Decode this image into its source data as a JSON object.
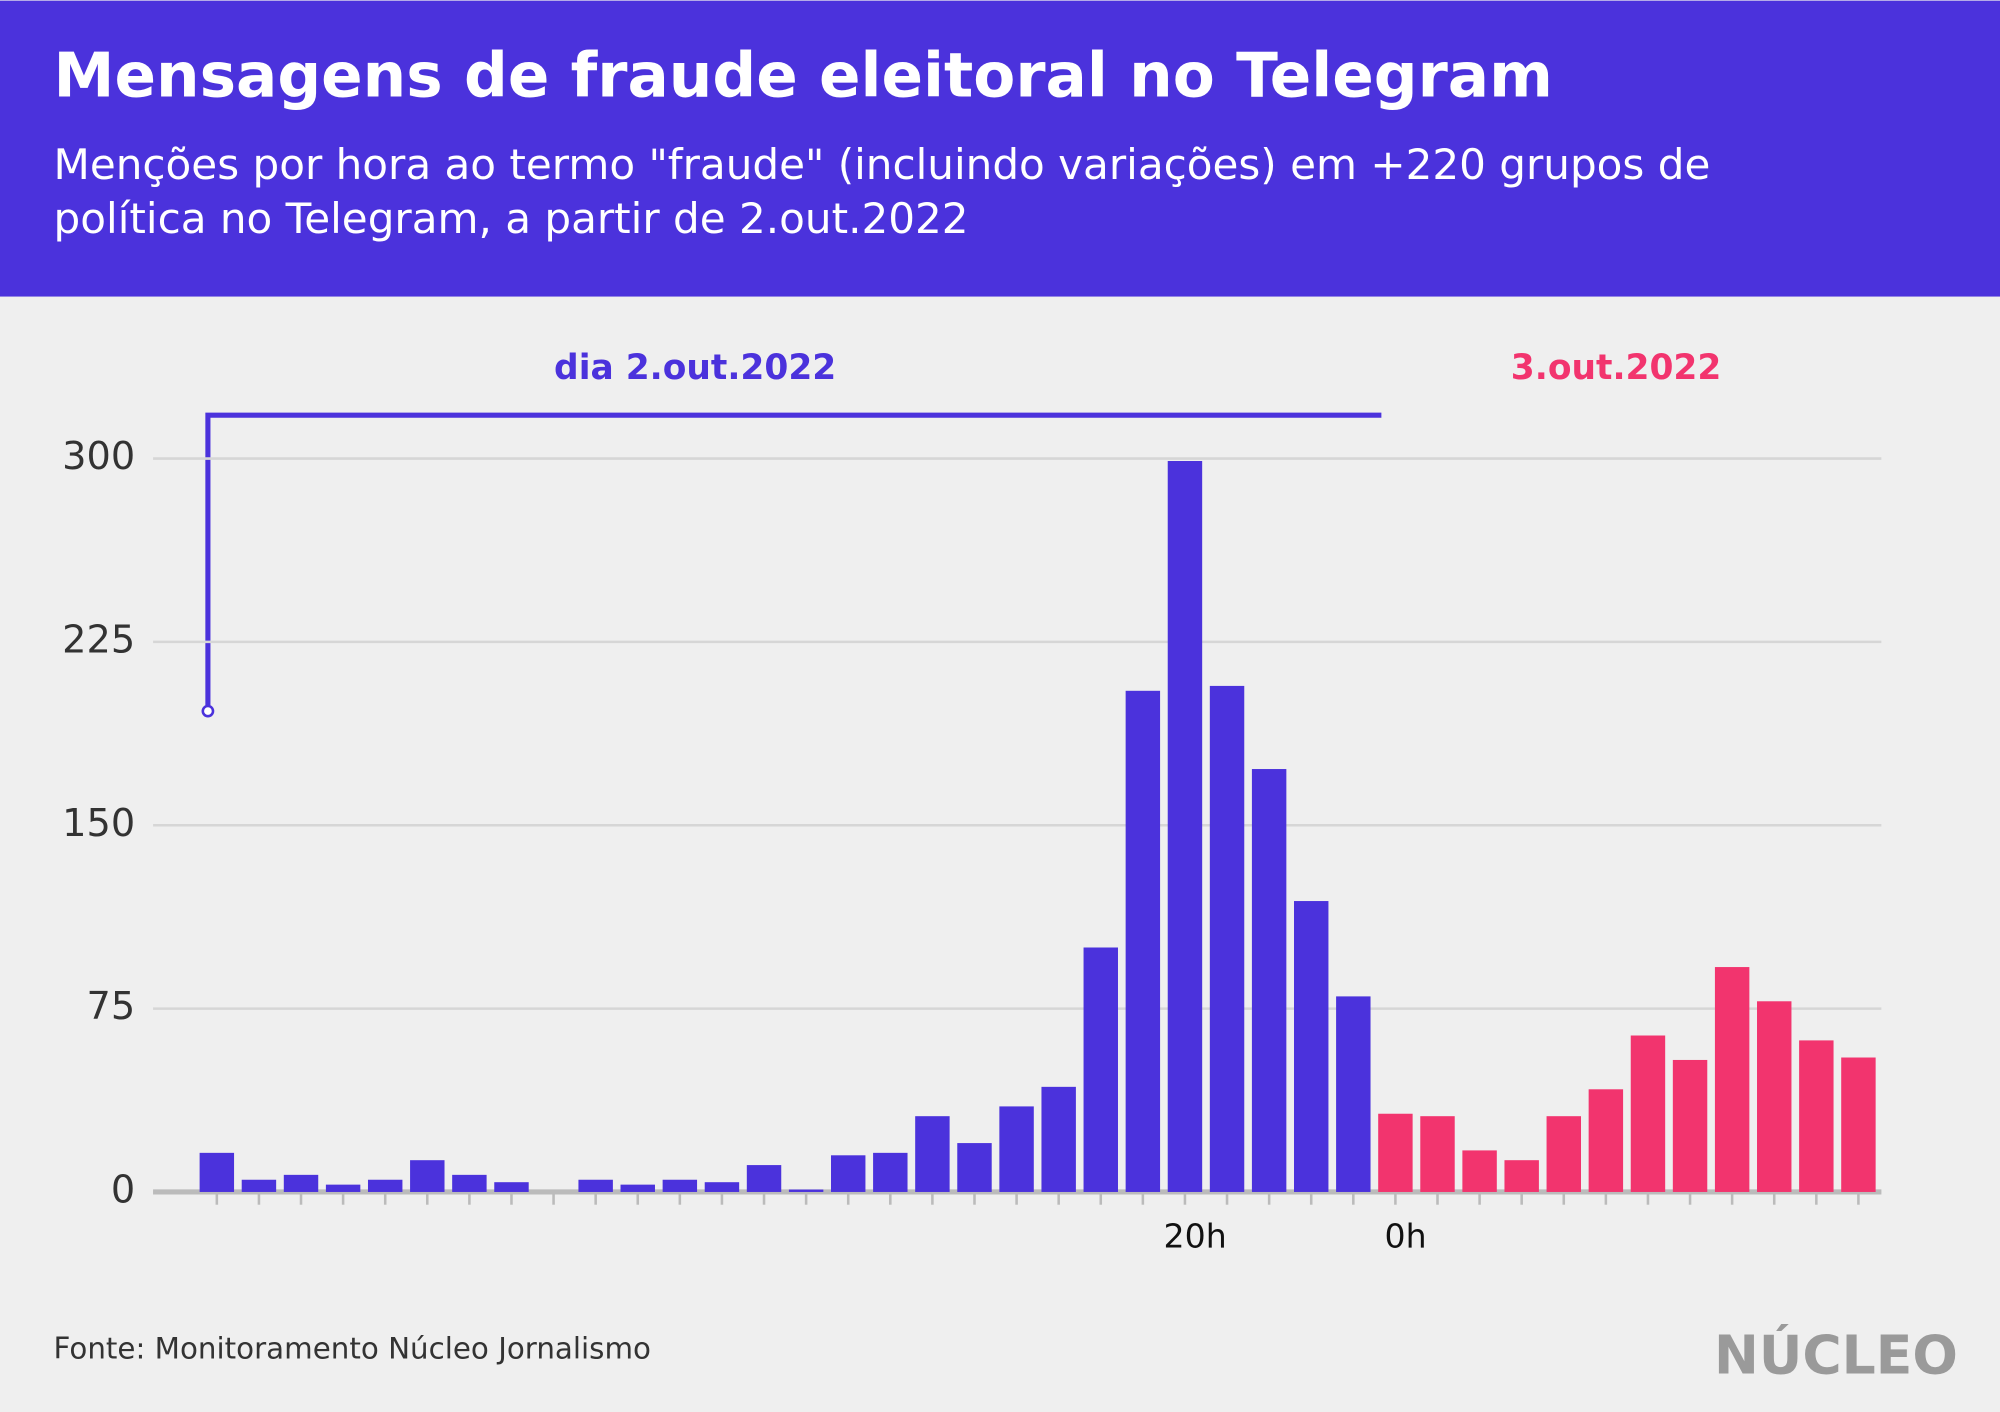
{
  "chart_data": {
    "type": "bar",
    "title": "Mensagens de fraude eleitoral no Telegram",
    "subtitle": [
      "Menções por hora ao termo \"fraude\" (incluindo variações) em +220 grupos de",
      "política no Telegram, a partir de 2.out.2022"
    ],
    "categories": [
      null,
      null,
      null,
      null,
      null,
      null,
      null,
      null,
      null,
      null,
      null,
      null,
      null,
      null,
      null,
      null,
      null,
      null,
      null,
      null,
      null,
      null,
      null,
      "20h",
      null,
      null,
      null,
      null,
      "0h",
      null,
      null,
      null,
      null,
      null,
      null,
      null,
      null,
      null,
      null,
      null
    ],
    "series": [
      {
        "name": "dia 2.out.2022",
        "color": "#4b32dc",
        "values": [
          16,
          5,
          7,
          3,
          5,
          13,
          7,
          4,
          0,
          5,
          3,
          5,
          4,
          11,
          1,
          15,
          16,
          31,
          20,
          35,
          43,
          100,
          205,
          299,
          207,
          173,
          119,
          80,
          null,
          null,
          null,
          null,
          null,
          null,
          null,
          null,
          null,
          null,
          null,
          null
        ]
      },
      {
        "name": "3.out.2022",
        "color": "#f2346e",
        "values": [
          null,
          null,
          null,
          null,
          null,
          null,
          null,
          null,
          null,
          null,
          null,
          null,
          null,
          null,
          null,
          null,
          null,
          null,
          null,
          null,
          null,
          null,
          null,
          null,
          null,
          null,
          null,
          null,
          32,
          31,
          17,
          13,
          31,
          42,
          64,
          54,
          92,
          78,
          62,
          55
        ]
      }
    ],
    "ylim": [
      0,
      300
    ],
    "yticks": [
      0,
      75,
      150,
      225,
      300
    ],
    "grid": true,
    "source": "Fonte: Monitoramento Núcleo Jornalismo",
    "brand": "NÚCLEO"
  }
}
